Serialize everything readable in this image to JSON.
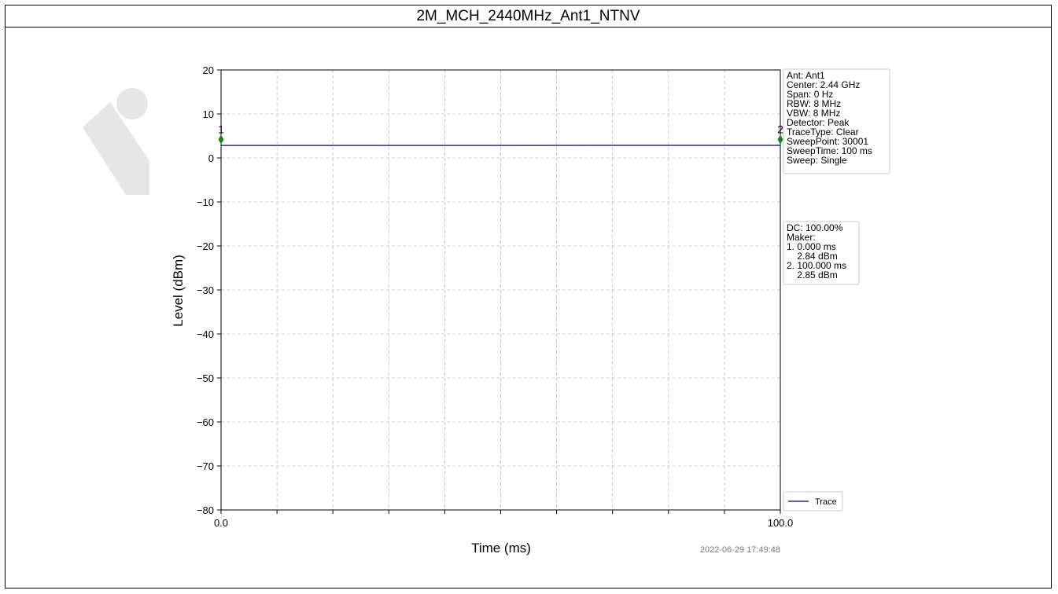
{
  "title": "2M_MCH_2440MHz_Ant1_NTNV",
  "colors": {
    "trace": "#1f2fa0",
    "marker": "#0a8a0a",
    "grid": "#bdbdbd",
    "watermark": "#e6e6e6"
  },
  "timestamp": "2022-06-29 17:49:48",
  "info_panel": [
    "Ant: Ant1",
    "Center: 2.44 GHz",
    "Span: 0 Hz",
    "RBW: 8 MHz",
    "VBW: 8 MHz",
    "Detector: Peak",
    "TraceType: Clear",
    "SweepPoint: 30001",
    "SweepTime: 100 ms",
    "Sweep: Single"
  ],
  "result_panel": [
    "DC: 100.00%",
    "Maker:",
    "1. 0.000 ms",
    "    2.84 dBm",
    "2. 100.000 ms",
    "    2.85 dBm"
  ],
  "chart_data": {
    "type": "line",
    "title": "2M_MCH_2440MHz_Ant1_NTNV",
    "xlabel": "Time (ms)",
    "ylabel": "Level (dBm)",
    "xlim": [
      0,
      100
    ],
    "ylim": [
      -80,
      20
    ],
    "x_ticks": [
      0,
      100
    ],
    "x_tick_labels": [
      "0.0",
      "100.0"
    ],
    "x_minor_count": 10,
    "y_ticks": [
      20,
      10,
      0,
      -10,
      -20,
      -30,
      -40,
      -50,
      -60,
      -70,
      -80
    ],
    "y_tick_labels": [
      "20",
      "10",
      "0",
      "−10",
      "−20",
      "−30",
      "−40",
      "−50",
      "−60",
      "−70",
      "−80"
    ],
    "grid": true,
    "legend": {
      "placement": "bottom-right",
      "entries": [
        "Trace"
      ]
    },
    "series": [
      {
        "name": "Trace",
        "x": [
          0,
          100
        ],
        "y": [
          2.84,
          2.85
        ]
      }
    ],
    "markers": [
      {
        "label": "1",
        "x": 0,
        "y": 4.2
      },
      {
        "label": "2",
        "x": 100,
        "y": 4.2
      }
    ]
  }
}
